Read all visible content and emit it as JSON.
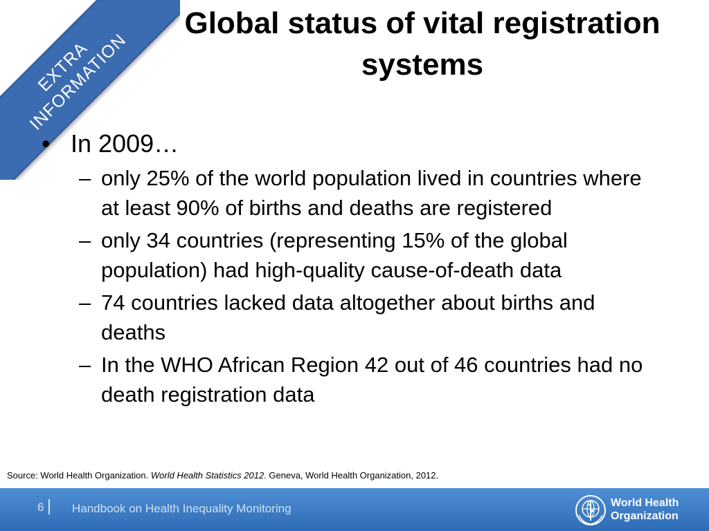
{
  "banner": {
    "line1": "EXTRA",
    "line2": "INFORMATION"
  },
  "title": {
    "line1": "Global status of vital registration",
    "line2": "systems"
  },
  "bullets": {
    "main": "In 2009…",
    "subs": [
      "only 25% of the world population lived in countries where at least 90% of births and deaths are registered",
      "only 34 countries (representing 15% of the global population) had high-quality cause-of-death data",
      "74 countries lacked data altogether about births and deaths",
      "In the WHO African Region 42 out of 46 countries had no death registration data"
    ]
  },
  "source": {
    "prefix": "Source: World Health Organization. ",
    "italic": "World Health Statistics 2012",
    "suffix": ". Geneva, World Health Organization, 2012."
  },
  "footer": {
    "page_number": "6",
    "handbook": "Handbook on Health Inequality Monitoring",
    "org_line1": "World Health",
    "org_line2": "Organization"
  },
  "colors": {
    "banner": "#3b6bb0",
    "footer_top": "#4f8fd4",
    "footer_bottom": "#2e6cb6"
  }
}
